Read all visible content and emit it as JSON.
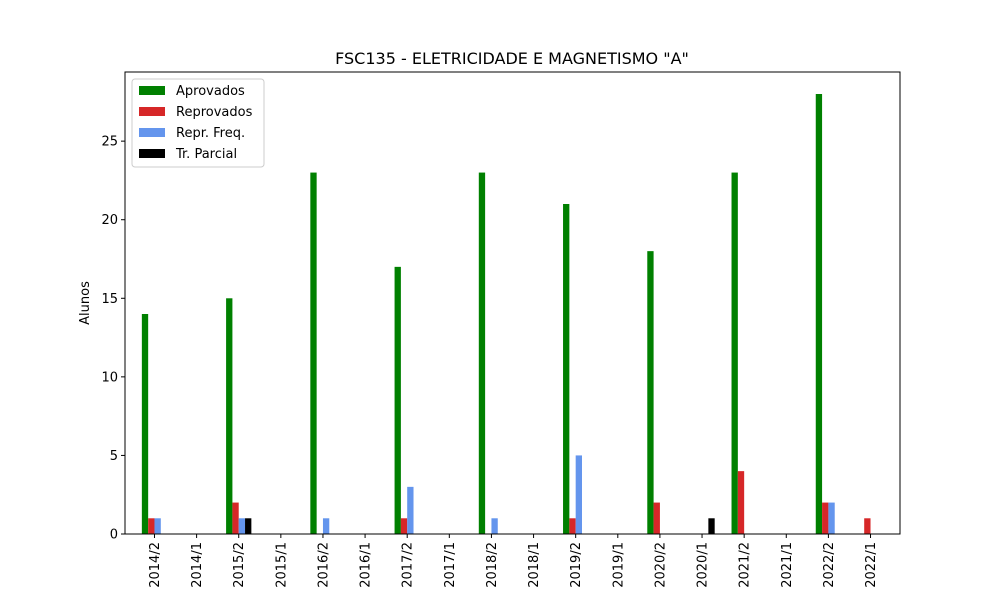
{
  "chart_data": {
    "type": "bar",
    "title": "FSC135 - ELETRICIDADE E MAGNETISMO \"A\"",
    "xlabel": "",
    "ylabel": "Alunos",
    "ylim": [
      0,
      29.4
    ],
    "yticks": [
      0,
      5,
      10,
      15,
      20,
      25
    ],
    "grid": false,
    "legend_position": "top-left",
    "categories": [
      "2014/2",
      "2014/1",
      "2015/2",
      "2015/1",
      "2016/2",
      "2016/1",
      "2017/2",
      "2017/1",
      "2018/2",
      "2018/1",
      "2019/2",
      "2019/1",
      "2020/2",
      "2020/1",
      "2021/2",
      "2021/1",
      "2022/2",
      "2022/1"
    ],
    "series": [
      {
        "name": "Aprovados",
        "color": "#008000",
        "values": [
          14,
          0,
          15,
          0,
          23,
          0,
          17,
          0,
          23,
          0,
          21,
          0,
          18,
          0,
          23,
          0,
          28,
          0
        ]
      },
      {
        "name": "Reprovados",
        "color": "#d62728",
        "values": [
          1,
          0,
          2,
          0,
          0,
          0,
          1,
          0,
          0,
          0,
          1,
          0,
          2,
          0,
          4,
          0,
          2,
          1
        ]
      },
      {
        "name": "Repr. Freq.",
        "color": "#6495ed",
        "values": [
          1,
          0,
          1,
          0,
          1,
          0,
          3,
          0,
          1,
          0,
          5,
          0,
          0,
          0,
          0,
          0,
          2,
          0
        ]
      },
      {
        "name": "Tr. Parcial",
        "color": "#000000",
        "values": [
          0,
          0,
          1,
          0,
          0,
          0,
          0,
          0,
          0,
          0,
          0,
          0,
          0,
          1,
          0,
          0,
          0,
          0
        ]
      }
    ]
  }
}
